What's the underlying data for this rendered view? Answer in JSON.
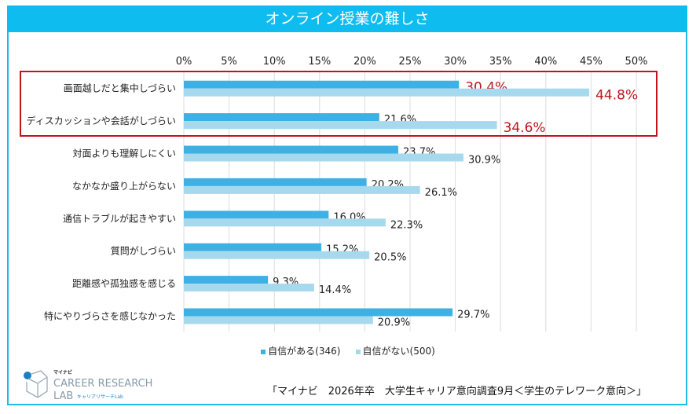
{
  "title": "オンライン授業の難しさ",
  "chart_data": {
    "type": "bar",
    "orientation": "horizontal",
    "categories": [
      "画面越しだと集中しづらい",
      "ディスカッションや会話がしづらい",
      "対面よりも理解しにくい",
      "なかなか盛り上がらない",
      "通信トラブルが起きやすい",
      "質問がしづらい",
      "距離感や孤独感を感じる",
      "特にやりづらさを感じなかった"
    ],
    "series": [
      {
        "name": "自信がある(346)",
        "color": "#3fb0e3",
        "values": [
          30.4,
          21.6,
          23.7,
          20.2,
          16.0,
          15.2,
          9.3,
          29.7
        ]
      },
      {
        "name": "自信がない(500)",
        "color": "#a7d9ee",
        "values": [
          44.8,
          34.6,
          30.9,
          26.1,
          22.3,
          20.5,
          14.4,
          20.9
        ]
      }
    ],
    "xlim": [
      0,
      50
    ],
    "ticks": [
      "0%",
      "5%",
      "10%",
      "15%",
      "20%",
      "25%",
      "30%",
      "35%",
      "40%",
      "45%",
      "50%"
    ],
    "grid": true,
    "legend": "bottom",
    "highlighted_categories": [
      0,
      1
    ],
    "highlight_color": "#c0141c"
  },
  "legend": {
    "items": [
      "自信がある(346)",
      "自信がない(500)"
    ]
  },
  "logo": {
    "brand": "マイナビ",
    "line1": "CAREER RESEARCH",
    "line2": "LAB",
    "sub": "キャリアリサーチLab"
  },
  "source": "「マイナビ　2026年卒　大学生キャリア意向調査9月＜学生のテレワーク意向＞」"
}
